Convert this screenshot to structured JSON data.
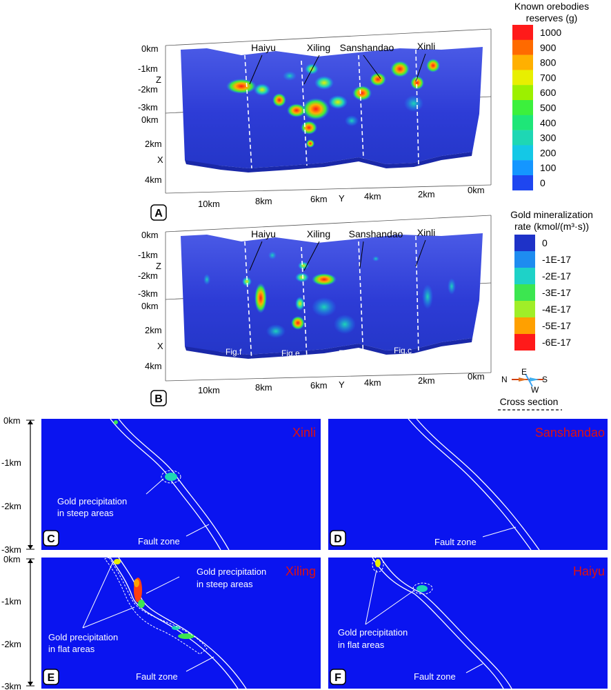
{
  "panel_a": {
    "letter": "A",
    "z_ticks": [
      "0km",
      "-1km",
      "-2km",
      "-3km"
    ],
    "z_label": "Z",
    "x_ticks": [
      "0km",
      "2km",
      "4km"
    ],
    "x_label": "X",
    "y_ticks": [
      "10km",
      "8km",
      "6km",
      "4km",
      "2km",
      "0km"
    ],
    "y_label": "Y",
    "deposits": [
      "Haiyu",
      "Xiling",
      "Sanshandao",
      "Xinli"
    ],
    "legend": {
      "title_line1": "Known orebodies",
      "title_line2": "reserves (g)",
      "labels": [
        "1000",
        "900",
        "800",
        "700",
        "600",
        "500",
        "400",
        "300",
        "200",
        "100",
        "0"
      ],
      "colors": [
        "#ff1a1a",
        "#ff6a00",
        "#ffb000",
        "#e8ef00",
        "#9cf000",
        "#3cf03c",
        "#1ee678",
        "#1ed7b4",
        "#14c8e6",
        "#1496ff",
        "#1e46f0"
      ]
    }
  },
  "panel_b": {
    "letter": "B",
    "z_ticks": [
      "0km",
      "-1km",
      "-2km",
      "-3km"
    ],
    "z_label": "Z",
    "x_ticks": [
      "0km",
      "2km",
      "4km"
    ],
    "x_label": "X",
    "y_ticks": [
      "10km",
      "8km",
      "6km",
      "4km",
      "2km",
      "0km"
    ],
    "y_label": "Y",
    "deposits": [
      "Haiyu",
      "Xiling",
      "Sanshandao",
      "Xinli"
    ],
    "section_labels": [
      "Fig.f",
      "Fig.e",
      "Fig.d",
      "Fig.c"
    ],
    "legend": {
      "title_line1": "Gold mineralization",
      "title_line2": "rate (kmol/(m³·s))",
      "labels": [
        "0",
        "-1E-17",
        "-2E-17",
        "-3E-17",
        "-4E-17",
        "-5E-17",
        "-6E-17"
      ],
      "colors": [
        "#1e32c8",
        "#1e8cf0",
        "#1ed2c8",
        "#3ce650",
        "#a0ee28",
        "#ffa000",
        "#ff1a1a"
      ]
    },
    "compass": {
      "n": "N",
      "e": "E",
      "s": "S",
      "w": "W"
    },
    "cross_section_label": "Cross section"
  },
  "sections": {
    "depth_ticks": [
      "0km",
      "-1km",
      "-2km",
      "-3km"
    ],
    "panels": [
      {
        "letter": "C",
        "title": "Xinli",
        "annotations": [
          "Gold precipitation",
          "in steep areas"
        ],
        "fault": "Fault zone"
      },
      {
        "letter": "D",
        "title": "Sanshandao",
        "annotations": [],
        "fault": "Fault zone"
      },
      {
        "letter": "E",
        "title": "Xiling",
        "annotations": [
          "Gold precipitation",
          "in steep areas",
          "Gold precipitation",
          "in flat areas"
        ],
        "fault": "Fault zone"
      },
      {
        "letter": "F",
        "title": "Haiyu",
        "annotations": [
          "Gold precipitation",
          "in flat areas"
        ],
        "fault": "Fault zone"
      }
    ]
  },
  "colors": {
    "section_bg": "#0a14f0",
    "block_bg": "#2d3cd6",
    "title_red": "#e01010"
  }
}
